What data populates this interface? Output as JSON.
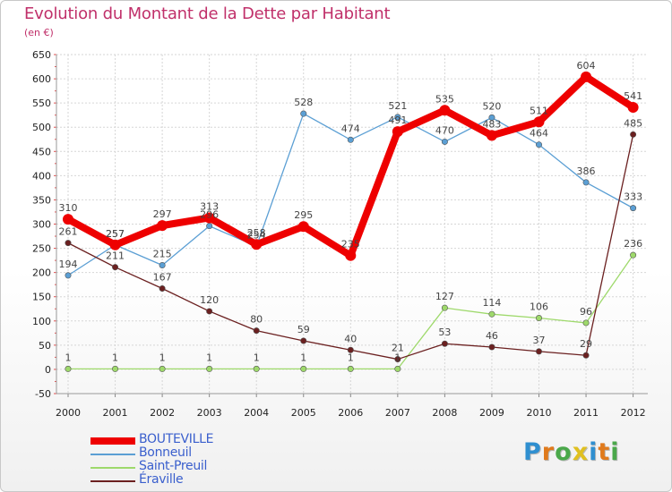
{
  "title": "Evolution du Montant de la Dette par Habitant",
  "subtitle": "(en €)",
  "logo": {
    "letters": [
      "P",
      "r",
      "o",
      "x",
      "i",
      "t",
      "i"
    ],
    "colors": [
      "#2f8fd0",
      "#e07a1c",
      "#4aa84a",
      "#e0c020",
      "#2f8fd0",
      "#e07a1c",
      "#4aa84a"
    ]
  },
  "chart_data": {
    "type": "line",
    "x": [
      "2000",
      "2001",
      "2002",
      "2003",
      "2004",
      "2005",
      "2006",
      "2007",
      "2008",
      "2009",
      "2010",
      "2011",
      "2012"
    ],
    "ylim": [
      -50,
      650
    ],
    "yticks": [
      -50,
      0,
      50,
      100,
      150,
      200,
      250,
      300,
      350,
      400,
      450,
      500,
      550,
      600,
      650
    ],
    "ytick_labels": [
      "-50",
      "0",
      "50",
      "100",
      "150",
      "200",
      "250",
      "300",
      "350",
      "400",
      "450",
      "500",
      "550",
      "600",
      "650"
    ],
    "grid": true,
    "legend_position": "bottom-left",
    "series": [
      {
        "name": "Bonneuil",
        "color": "#5b9fd4",
        "values": [
          194,
          257,
          215,
          296,
          254,
          528,
          474,
          521,
          470,
          520,
          464,
          386,
          333
        ],
        "labels": [
          "194",
          "257",
          "215",
          "296",
          "254",
          "528",
          "474",
          "521",
          "470",
          "520",
          "464",
          "386",
          "333"
        ]
      },
      {
        "name": "Saint-Preuil",
        "color": "#9ed96b",
        "values": [
          1,
          1,
          1,
          1,
          1,
          1,
          1,
          1,
          127,
          114,
          106,
          96,
          236
        ],
        "labels": [
          "1",
          "1",
          "1",
          "1",
          "1",
          "1",
          "1",
          "1",
          "127",
          "114",
          "106",
          "96",
          "236"
        ]
      },
      {
        "name": "Éraville",
        "color": "#6b2020",
        "values": [
          261,
          211,
          167,
          120,
          80,
          59,
          40,
          21,
          53,
          46,
          37,
          29,
          485
        ],
        "labels": [
          "261",
          "211",
          "167",
          "120",
          "80",
          "59",
          "40",
          "21",
          "53",
          "46",
          "37",
          "29",
          "485"
        ]
      },
      {
        "name": "BOUTEVILLE",
        "color": "#ee0000",
        "values": [
          310,
          257,
          297,
          313,
          258,
          295,
          235,
          491,
          535,
          483,
          511,
          604,
          541
        ],
        "labels": [
          "310",
          "257",
          "297",
          "313",
          "258",
          "295",
          "235",
          "491",
          "535",
          "483",
          "511",
          "604",
          "541"
        ]
      }
    ]
  },
  "legend": [
    {
      "label": "BOUTEVILLE",
      "color": "#ee0000",
      "text_color": "#3a5fcd",
      "width": 8
    },
    {
      "label": "Bonneuil",
      "color": "#5b9fd4",
      "text_color": "#3a5fcd",
      "width": 2
    },
    {
      "label": "Saint-Preuil",
      "color": "#9ed96b",
      "text_color": "#3a5fcd",
      "width": 2
    },
    {
      "label": "Éraville",
      "color": "#6b2020",
      "text_color": "#3a5fcd",
      "width": 2
    }
  ]
}
